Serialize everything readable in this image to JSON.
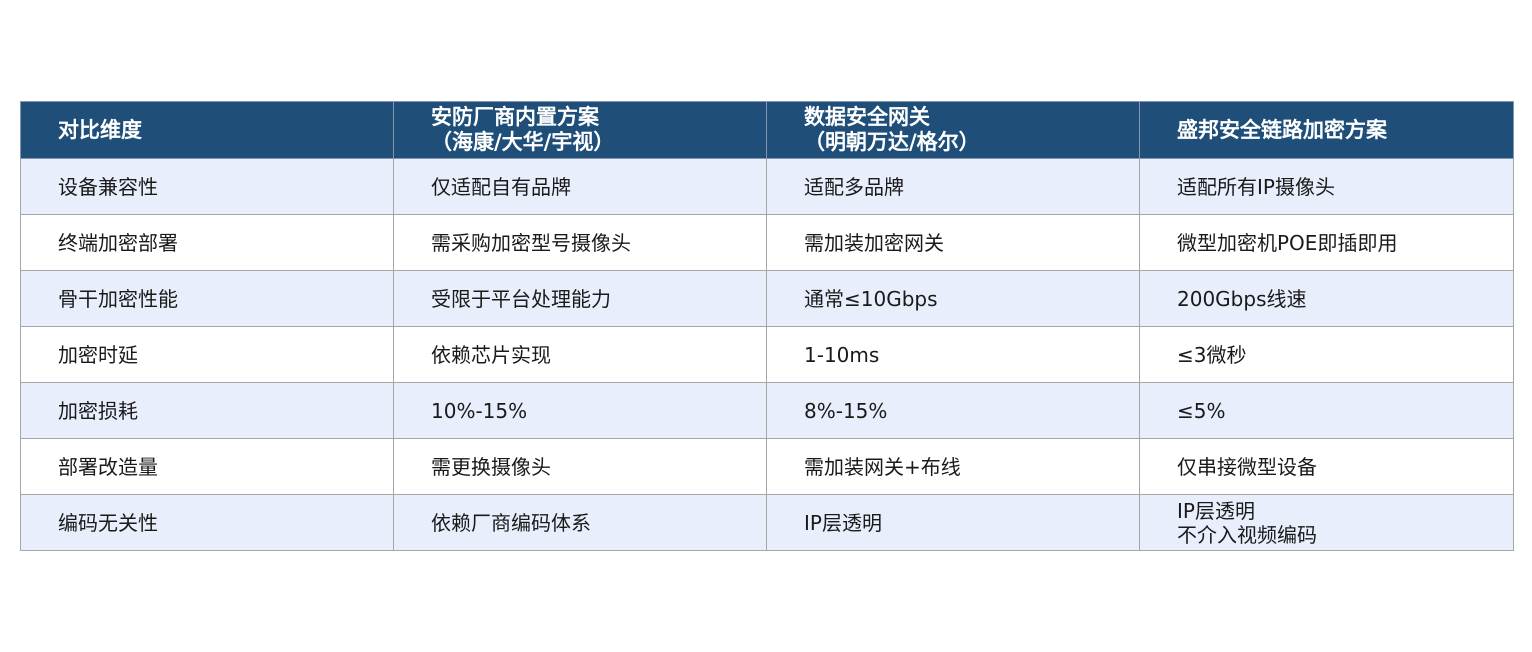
{
  "table": {
    "headers": [
      {
        "lines": [
          "对比维度"
        ]
      },
      {
        "lines": [
          "安防厂商内置方案",
          "（海康/大华/宇视）"
        ]
      },
      {
        "lines": [
          "数据安全网关",
          "（明朝万达/格尔）"
        ]
      },
      {
        "lines": [
          "盛邦安全链路加密方案"
        ]
      }
    ],
    "rows": [
      [
        "设备兼容性",
        "仅适配自有品牌",
        "适配多品牌",
        "适配所有IP摄像头"
      ],
      [
        "终端加密部署",
        "需采购加密型号摄像头",
        "需加装加密网关",
        "微型加密机POE即插即用"
      ],
      [
        "骨干加密性能",
        "受限于平台处理能力",
        "通常≤10Gbps",
        "200Gbps线速"
      ],
      [
        "加密时延",
        "依赖芯片实现",
        "1-10ms",
        "≤3微秒"
      ],
      [
        "加密损耗",
        "10%-15%",
        "8%-15%",
        "≤5%"
      ],
      [
        "部署改造量",
        "需更换摄像头",
        "需加装网关+布线",
        "仅串接微型设备"
      ],
      [
        "编码无关性",
        "依赖厂商编码体系",
        "IP层透明",
        [
          "IP层透明",
          "不介入视频编码"
        ]
      ]
    ]
  },
  "colors": {
    "header_bg": "#1f4e79",
    "header_text": "#ffffff",
    "row_odd_bg": "#e8eefb",
    "row_even_bg": "#ffffff",
    "border": "#a6a6a6"
  }
}
